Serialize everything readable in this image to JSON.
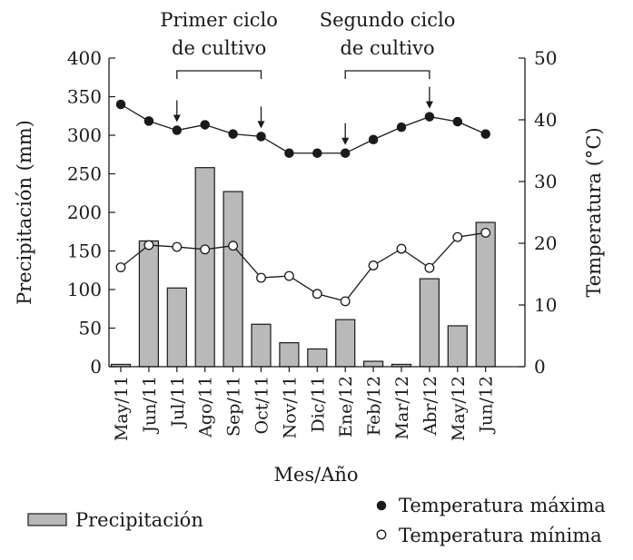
{
  "chart_data": {
    "type": "bar+line",
    "categories": [
      "May/11",
      "Jun/11",
      "Jul/11",
      "Ago/11",
      "Sep/11",
      "Oct/11",
      "Nov/11",
      "Dic/11",
      "Ene/12",
      "Feb/12",
      "Mar/12",
      "Abr/12",
      "May/12",
      "Jun/12"
    ],
    "xlabel": "Mes/Año",
    "ylabel_left": "Precipitación (mm)",
    "ylabel_right": "Temperatura (°C)",
    "ylim_left": [
      0,
      400
    ],
    "yticks_left": [
      0,
      50,
      100,
      150,
      200,
      250,
      300,
      350,
      400
    ],
    "ylim_right": [
      0,
      50
    ],
    "yticks_right": [
      0,
      10,
      20,
      30,
      40,
      50
    ],
    "series": [
      {
        "name": "Precipitación",
        "kind": "bar",
        "axis": "left",
        "values": [
          3,
          163,
          102,
          258,
          227,
          55,
          31,
          23,
          61,
          7,
          3,
          114,
          53,
          187
        ]
      },
      {
        "name": "Temperatura máxima",
        "kind": "line",
        "axis": "right",
        "marker": "filled",
        "values": [
          42.5,
          39.8,
          38.3,
          39.2,
          37.7,
          37.3,
          34.6,
          34.6,
          34.6,
          36.8,
          38.8,
          40.5,
          39.7,
          37.7
        ]
      },
      {
        "name": "Temperatura mínima",
        "kind": "line",
        "axis": "right",
        "marker": "open",
        "values": [
          16.1,
          19.7,
          19.4,
          19.0,
          19.6,
          14.4,
          14.7,
          11.8,
          10.6,
          16.4,
          19.1,
          16.0,
          21.0,
          21.7
        ]
      }
    ],
    "annotations": [
      {
        "line1": "Primer ciclo",
        "line2": "de cultivo",
        "start": "Jul/11",
        "end": "Oct/11"
      },
      {
        "line1": "Segundo ciclo",
        "line2": "de cultivo",
        "start": "Ene/12",
        "end": "Abr/12"
      }
    ],
    "legend": [
      {
        "label": "Precipitación",
        "symbol": "bar"
      },
      {
        "label": "Temperatura máxima",
        "symbol": "filled-circle"
      },
      {
        "label": "Temperatura mínima",
        "symbol": "open-circle"
      }
    ]
  },
  "colors": {
    "bar_fill": "#b9b9b9",
    "stroke": "#1a1a1a"
  }
}
